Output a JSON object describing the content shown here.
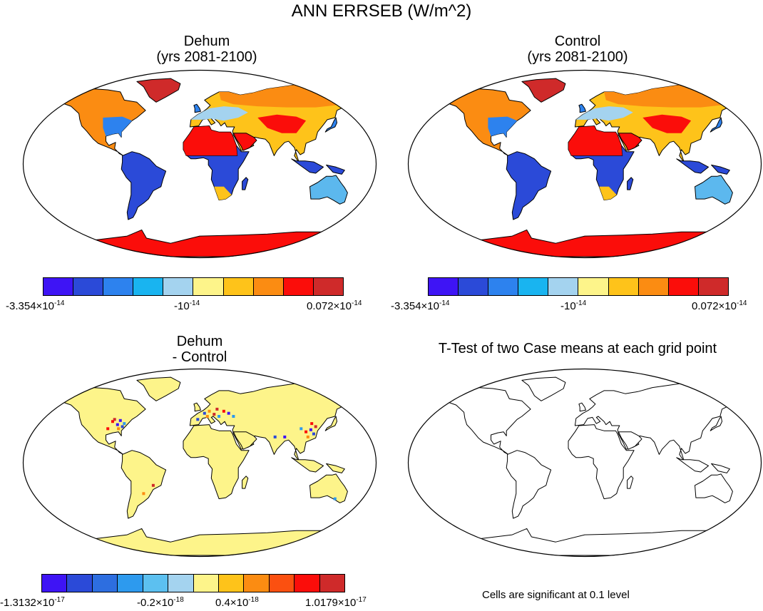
{
  "title": "ANN ERRSEB (W/m^2)",
  "panels": {
    "dehum": {
      "title1": "Dehum",
      "title2": "(yrs 2081-2100)"
    },
    "control": {
      "title1": "Control",
      "title2": "(yrs 2081-2100)"
    },
    "diff": {
      "title1": "Dehum",
      "title2": "- Control"
    },
    "ttest": {
      "title": "T-Test of two Case means at each grid point",
      "note": "Cells are significant at 0.1 level"
    }
  },
  "colorbar_top": {
    "colors": [
      "#3e14f5",
      "#2b4ad8",
      "#2d82ee",
      "#19b4f0",
      "#a4d3ef",
      "#fdf48a",
      "#fec31a",
      "#fb8c12",
      "#fb0d0a",
      "#cf2a2a"
    ],
    "labels": [
      {
        "mant": "-3.354×10",
        "exp": "-14"
      },
      {
        "mant": "-10",
        "exp": "-14"
      },
      {
        "mant": "0.072×10",
        "exp": "-14"
      }
    ]
  },
  "colorbar_diff": {
    "colors": [
      "#3e14f5",
      "#2b4ad8",
      "#2d6ee0",
      "#2d9aee",
      "#5cc0f0",
      "#a4d3ef",
      "#fdf48a",
      "#fec31a",
      "#fb8c12",
      "#fb5010",
      "#fb0d0a",
      "#cf2a2a"
    ],
    "labels": [
      {
        "mant": "-1.3132×10",
        "exp": "-17"
      },
      {
        "mant": "-0.2×10",
        "exp": "-18"
      },
      {
        "mant": "0.4×10",
        "exp": "-18"
      },
      {
        "mant": "1.0179×10",
        "exp": "-17"
      }
    ]
  }
}
